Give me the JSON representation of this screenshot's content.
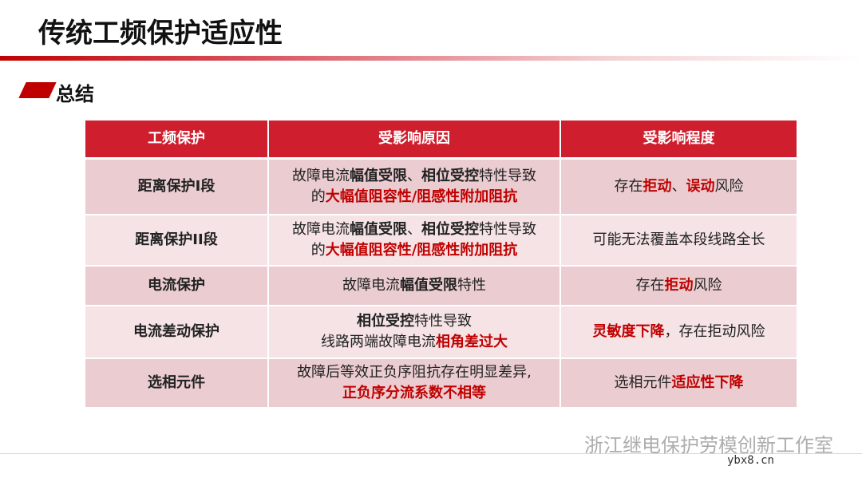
{
  "header": {
    "title": "传统工频保护适应性"
  },
  "section": {
    "title": "总结"
  },
  "table": {
    "columns": [
      "工频保护",
      "受影响原因",
      "受影响程度"
    ],
    "rows": [
      [
        [
          [
            {
              "text": "距离保护I段",
              "bold": true
            }
          ]
        ],
        [
          [
            {
              "text": "故障电流"
            },
            {
              "text": "幅值受限",
              "bold": true
            },
            {
              "text": "、"
            },
            {
              "text": "相位受控",
              "bold": true
            },
            {
              "text": "特性导致"
            }
          ],
          [
            {
              "text": "的"
            },
            {
              "text": "大幅值阻容性/阻感性附加阻抗",
              "bold": true,
              "color": "#c00000"
            }
          ]
        ],
        [
          [
            {
              "text": "存在"
            },
            {
              "text": "拒动",
              "bold": true,
              "color": "#c00000"
            },
            {
              "text": "、"
            },
            {
              "text": "误动",
              "bold": true,
              "color": "#c00000"
            },
            {
              "text": "风险"
            }
          ]
        ]
      ],
      [
        [
          [
            {
              "text": "距离保护II段",
              "bold": true
            }
          ]
        ],
        [
          [
            {
              "text": "故障电流"
            },
            {
              "text": "幅值受限",
              "bold": true
            },
            {
              "text": "、"
            },
            {
              "text": "相位受控",
              "bold": true
            },
            {
              "text": "特性导致"
            }
          ],
          [
            {
              "text": "的"
            },
            {
              "text": "大幅值阻容性/阻感性附加阻抗",
              "bold": true,
              "color": "#c00000"
            }
          ]
        ],
        [
          [
            {
              "text": "可能无法覆盖本段线路全长"
            }
          ]
        ]
      ],
      [
        [
          [
            {
              "text": "电流保护",
              "bold": true
            }
          ]
        ],
        [
          [
            {
              "text": "故障电流"
            },
            {
              "text": "幅值受限",
              "bold": true
            },
            {
              "text": "特性"
            }
          ]
        ],
        [
          [
            {
              "text": "存在"
            },
            {
              "text": "拒动",
              "bold": true,
              "color": "#c00000"
            },
            {
              "text": "风险"
            }
          ]
        ]
      ],
      [
        [
          [
            {
              "text": "电流差动保护",
              "bold": true
            }
          ]
        ],
        [
          [
            {
              "text": "相位受控",
              "bold": true
            },
            {
              "text": "特性导致"
            }
          ],
          [
            {
              "text": "线路两端故障电流"
            },
            {
              "text": "相角差过大",
              "bold": true,
              "color": "#c00000"
            }
          ]
        ],
        [
          [
            {
              "text": "灵敏度下降",
              "bold": true,
              "color": "#c00000"
            },
            {
              "text": "，存在拒动风险"
            }
          ]
        ]
      ],
      [
        [
          [
            {
              "text": "选相元件",
              "bold": true
            }
          ]
        ],
        [
          [
            {
              "text": "故障后等效正负序阻抗存在明显差异,"
            }
          ],
          [
            {
              "text": "正负序分流系数不相等",
              "bold": true,
              "color": "#c00000"
            }
          ]
        ],
        [
          [
            {
              "text": "选相元件"
            },
            {
              "text": "适应性下降",
              "bold": true,
              "color": "#c00000"
            }
          ]
        ]
      ]
    ]
  },
  "footer": {
    "watermark": "浙江继电保护劳模创新工作室",
    "site": "ybx8.cn"
  }
}
